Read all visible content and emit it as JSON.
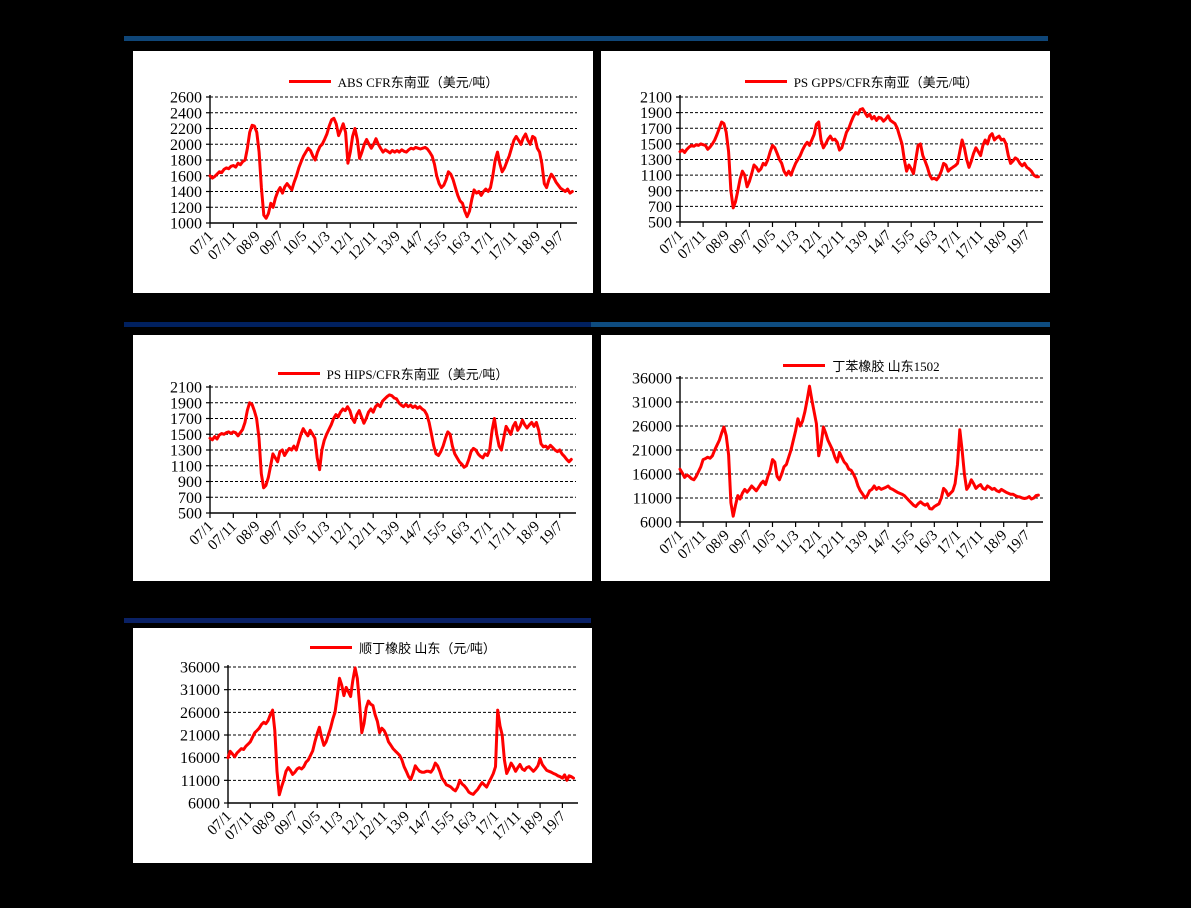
{
  "colors": {
    "background": "#000000",
    "panel": "#FFFFFF",
    "series_red": "#FF0000",
    "top_bar": "#0F4678",
    "mid_left_bar": "#00205F",
    "mid_right_bar": "#0E4C80",
    "bottom_bar": "#0A2165",
    "grid": "#000000"
  },
  "chart_data": [
    {
      "type": "line",
      "title": "ABS CFR东南亚（美元/吨）",
      "series_color": "#FF0000",
      "legend_position": "top-center",
      "grid": "dashed-horizontal",
      "x_start": "2007/01",
      "x_step_months": 1,
      "x_domain": [
        0,
        157
      ],
      "x_tick_positions": [
        0,
        10,
        20,
        30,
        40,
        50,
        60,
        70,
        80,
        90,
        100,
        110,
        120,
        130,
        140,
        150
      ],
      "x_tick_labels": [
        "07/1",
        "07/11",
        "08/9",
        "09/7",
        "10/5",
        "11/3",
        "12/1",
        "12/11",
        "13/9",
        "14/7",
        "15/5",
        "16/3",
        "17/1",
        "17/11",
        "18/9",
        "19/7"
      ],
      "ylim": [
        1000,
        2600
      ],
      "y_ticks": [
        1000,
        1200,
        1400,
        1600,
        1800,
        2000,
        2200,
        2400,
        2600
      ],
      "values": [
        1600,
        1570,
        1590,
        1620,
        1650,
        1640,
        1680,
        1700,
        1690,
        1720,
        1730,
        1710,
        1760,
        1740,
        1780,
        1800,
        1950,
        2150,
        2240,
        2230,
        2150,
        1900,
        1450,
        1100,
        1060,
        1120,
        1250,
        1200,
        1320,
        1400,
        1450,
        1380,
        1460,
        1500,
        1460,
        1420,
        1520,
        1600,
        1700,
        1780,
        1850,
        1900,
        1950,
        1920,
        1850,
        1800,
        1900,
        1970,
        2000,
        2060,
        2130,
        2230,
        2310,
        2330,
        2260,
        2110,
        2180,
        2260,
        2150,
        1760,
        1900,
        2100,
        2200,
        2060,
        1820,
        1900,
        2000,
        2060,
        2000,
        1950,
        2000,
        2070,
        2000,
        1950,
        1900,
        1930,
        1910,
        1890,
        1920,
        1900,
        1920,
        1900,
        1930,
        1910,
        1900,
        1930,
        1950,
        1940,
        1960,
        1950,
        1940,
        1950,
        1960,
        1940,
        1900,
        1850,
        1750,
        1600,
        1500,
        1450,
        1480,
        1550,
        1650,
        1620,
        1550,
        1450,
        1350,
        1280,
        1250,
        1150,
        1080,
        1150,
        1300,
        1420,
        1380,
        1400,
        1350,
        1400,
        1430,
        1400,
        1450,
        1600,
        1800,
        1900,
        1750,
        1650,
        1700,
        1780,
        1850,
        1950,
        2050,
        2100,
        2050,
        2000,
        2080,
        2130,
        2050,
        2000,
        2100,
        2080,
        1950,
        1900,
        1750,
        1500,
        1450,
        1550,
        1620,
        1580,
        1520,
        1480,
        1440,
        1420,
        1400,
        1430,
        1380,
        1400
      ]
    },
    {
      "type": "line",
      "title": "PS GPPS/CFR东南亚（美元/吨）",
      "series_color": "#FF0000",
      "legend_position": "top-center",
      "grid": "dashed-horizontal",
      "x_start": "2007/01",
      "x_step_months": 1,
      "x_domain": [
        0,
        157
      ],
      "x_tick_positions": [
        0,
        10,
        20,
        30,
        40,
        50,
        60,
        70,
        80,
        90,
        100,
        110,
        120,
        130,
        140,
        150
      ],
      "x_tick_labels": [
        "07/1",
        "07/11",
        "08/9",
        "09/7",
        "10/5",
        "11/3",
        "12/1",
        "12/11",
        "13/9",
        "14/7",
        "15/5",
        "16/3",
        "17/1",
        "17/11",
        "18/9",
        "19/7"
      ],
      "ylim": [
        500,
        2100
      ],
      "y_ticks": [
        500,
        700,
        900,
        1100,
        1300,
        1500,
        1700,
        1900,
        2100
      ],
      "values": [
        1400,
        1420,
        1390,
        1430,
        1460,
        1480,
        1470,
        1490,
        1480,
        1500,
        1490,
        1480,
        1430,
        1460,
        1500,
        1550,
        1620,
        1700,
        1780,
        1760,
        1650,
        1400,
        900,
        680,
        760,
        900,
        1050,
        1150,
        1100,
        950,
        1020,
        1120,
        1230,
        1200,
        1150,
        1180,
        1250,
        1230,
        1300,
        1400,
        1480,
        1450,
        1380,
        1300,
        1250,
        1150,
        1100,
        1150,
        1100,
        1180,
        1250,
        1300,
        1350,
        1420,
        1480,
        1520,
        1480,
        1550,
        1620,
        1750,
        1780,
        1550,
        1450,
        1500,
        1560,
        1600,
        1550,
        1560,
        1520,
        1420,
        1450,
        1550,
        1650,
        1700,
        1780,
        1850,
        1900,
        1880,
        1940,
        1950,
        1900,
        1850,
        1880,
        1820,
        1850,
        1800,
        1840,
        1830,
        1790,
        1820,
        1860,
        1800,
        1780,
        1760,
        1700,
        1600,
        1500,
        1300,
        1150,
        1230,
        1180,
        1120,
        1300,
        1480,
        1500,
        1350,
        1280,
        1200,
        1100,
        1050,
        1060,
        1040,
        1080,
        1150,
        1250,
        1230,
        1150,
        1180,
        1200,
        1220,
        1250,
        1400,
        1550,
        1450,
        1300,
        1200,
        1280,
        1380,
        1450,
        1400,
        1350,
        1480,
        1550,
        1500,
        1600,
        1630,
        1550,
        1580,
        1600,
        1550,
        1560,
        1500,
        1350,
        1250,
        1280,
        1320,
        1300,
        1250,
        1220,
        1250,
        1200,
        1180,
        1150,
        1100,
        1080,
        1080
      ]
    },
    {
      "type": "line",
      "title": "PS HIPS/CFR东南亚（美元/吨）",
      "series_color": "#FF0000",
      "legend_position": "top-center",
      "grid": "dashed-horizontal",
      "x_start": "2007/01",
      "x_step_months": 1,
      "x_domain": [
        0,
        157
      ],
      "x_tick_positions": [
        0,
        10,
        20,
        30,
        40,
        50,
        60,
        70,
        80,
        90,
        100,
        110,
        120,
        130,
        140,
        150
      ],
      "x_tick_labels": [
        "07/1",
        "07/11",
        "08/9",
        "09/7",
        "10/5",
        "11/3",
        "12/1",
        "12/11",
        "13/9",
        "14/7",
        "15/5",
        "16/3",
        "17/1",
        "17/11",
        "18/9",
        "19/7"
      ],
      "ylim": [
        500,
        2100
      ],
      "y_ticks": [
        500,
        700,
        900,
        1100,
        1300,
        1500,
        1700,
        1900,
        2100
      ],
      "values": [
        1450,
        1430,
        1470,
        1440,
        1490,
        1510,
        1500,
        1520,
        1530,
        1510,
        1530,
        1520,
        1480,
        1520,
        1560,
        1650,
        1800,
        1900,
        1880,
        1800,
        1700,
        1450,
        1000,
        820,
        850,
        950,
        1100,
        1250,
        1200,
        1150,
        1280,
        1300,
        1230,
        1280,
        1320,
        1300,
        1350,
        1300,
        1400,
        1500,
        1570,
        1520,
        1480,
        1550,
        1500,
        1450,
        1200,
        1050,
        1300,
        1420,
        1500,
        1560,
        1620,
        1700,
        1750,
        1720,
        1780,
        1820,
        1800,
        1850,
        1800,
        1700,
        1650,
        1750,
        1800,
        1720,
        1640,
        1700,
        1780,
        1820,
        1780,
        1850,
        1880,
        1850,
        1920,
        1950,
        1980,
        2000,
        1990,
        1960,
        1950,
        1900,
        1870,
        1850,
        1880,
        1850,
        1870,
        1840,
        1860,
        1830,
        1850,
        1820,
        1800,
        1750,
        1650,
        1500,
        1350,
        1250,
        1230,
        1280,
        1350,
        1450,
        1530,
        1500,
        1350,
        1250,
        1200,
        1150,
        1120,
        1080,
        1100,
        1180,
        1280,
        1320,
        1300,
        1250,
        1220,
        1200,
        1250,
        1230,
        1300,
        1550,
        1700,
        1500,
        1350,
        1300,
        1450,
        1600,
        1550,
        1500,
        1600,
        1650,
        1550,
        1600,
        1680,
        1620,
        1580,
        1620,
        1650,
        1600,
        1650,
        1550,
        1380,
        1340,
        1350,
        1320,
        1360,
        1330,
        1300,
        1280,
        1300,
        1250,
        1220,
        1180,
        1150,
        1180
      ]
    },
    {
      "type": "line",
      "title": "丁苯橡胶 山东1502",
      "series_color": "#FF0000",
      "legend_position": "top-center",
      "grid": "dashed-horizontal",
      "x_start": "2007/01",
      "x_step_months": 1,
      "x_domain": [
        0,
        157
      ],
      "x_tick_positions": [
        0,
        10,
        20,
        30,
        40,
        50,
        60,
        70,
        80,
        90,
        100,
        110,
        120,
        130,
        140,
        150
      ],
      "x_tick_labels": [
        "07/1",
        "07/11",
        "08/9",
        "09/7",
        "10/5",
        "11/3",
        "12/1",
        "12/11",
        "13/9",
        "14/7",
        "15/5",
        "16/3",
        "17/1",
        "17/11",
        "18/9",
        "19/7"
      ],
      "ylim": [
        6000,
        36000
      ],
      "y_ticks": [
        6000,
        11000,
        16000,
        21000,
        26000,
        31000,
        36000
      ],
      "values": [
        17000,
        16200,
        15300,
        15800,
        15500,
        15000,
        14800,
        15500,
        16500,
        17500,
        19000,
        19200,
        19500,
        19300,
        19800,
        21000,
        22000,
        23000,
        24500,
        25800,
        24000,
        20000,
        10000,
        7200,
        9500,
        11500,
        10800,
        12000,
        12800,
        12200,
        12800,
        13500,
        13000,
        12500,
        13200,
        14000,
        14500,
        13800,
        15500,
        16800,
        19000,
        18500,
        15500,
        14800,
        16000,
        17500,
        18000,
        19500,
        21000,
        23000,
        25000,
        27500,
        26000,
        27000,
        29000,
        31500,
        34300,
        31500,
        29000,
        26500,
        19800,
        22000,
        25800,
        24500,
        23000,
        22000,
        21000,
        19500,
        18500,
        20500,
        19500,
        18500,
        18000,
        17000,
        16800,
        16000,
        15000,
        13500,
        12500,
        11800,
        11000,
        11500,
        12500,
        12800,
        13500,
        12800,
        13200,
        12800,
        13000,
        13200,
        13500,
        13000,
        12800,
        12500,
        12200,
        12000,
        11800,
        11500,
        11000,
        10500,
        10000,
        9500,
        9200,
        9800,
        10200,
        9800,
        9500,
        9800,
        8800,
        8700,
        9200,
        9500,
        9800,
        11000,
        13000,
        12500,
        11500,
        12000,
        12500,
        14000,
        18000,
        25200,
        21000,
        16000,
        12800,
        13500,
        14800,
        14000,
        13000,
        13500,
        13800,
        13000,
        12800,
        13500,
        13200,
        12800,
        13000,
        12500,
        12300,
        12800,
        12500,
        12200,
        12000,
        11800,
        11800,
        11500,
        11300,
        11200,
        11000,
        10900,
        11000,
        11300,
        10800,
        11000,
        11500,
        11600
      ]
    },
    {
      "type": "line",
      "title": "顺丁橡胶 山东（元/吨）",
      "series_color": "#FF0000",
      "legend_position": "top-center",
      "grid": "dashed-horizontal",
      "x_start": "2007/01",
      "x_step_months": 1,
      "x_domain": [
        0,
        157
      ],
      "x_tick_positions": [
        0,
        10,
        20,
        30,
        40,
        50,
        60,
        70,
        80,
        90,
        100,
        110,
        120,
        130,
        140,
        150
      ],
      "x_tick_labels": [
        "07/1",
        "07/11",
        "08/9",
        "09/7",
        "10/5",
        "11/3",
        "12/1",
        "12/11",
        "13/9",
        "14/7",
        "15/5",
        "16/3",
        "17/1",
        "17/11",
        "18/9",
        "19/7"
      ],
      "ylim": [
        6000,
        36000
      ],
      "y_ticks": [
        6000,
        11000,
        16000,
        21000,
        26000,
        31000,
        36000
      ],
      "values": [
        16000,
        17400,
        16800,
        16200,
        17000,
        17500,
        18000,
        17800,
        18500,
        19000,
        19500,
        20500,
        21500,
        22000,
        22500,
        23300,
        23800,
        23500,
        24200,
        25500,
        26500,
        22000,
        13000,
        7800,
        9500,
        11000,
        13000,
        13800,
        13200,
        12300,
        12800,
        13500,
        13800,
        13500,
        14000,
        15000,
        15500,
        16500,
        17500,
        19500,
        21300,
        22700,
        20500,
        18700,
        19500,
        21000,
        22500,
        24500,
        26000,
        29500,
        33500,
        32000,
        29700,
        31500,
        30500,
        29500,
        33000,
        35800,
        33500,
        28000,
        21500,
        23500,
        27000,
        28500,
        27800,
        27500,
        25500,
        24000,
        21500,
        22500,
        22000,
        21000,
        19500,
        18800,
        18000,
        17500,
        17000,
        16500,
        15500,
        14000,
        13000,
        11800,
        11200,
        12500,
        14200,
        13500,
        13000,
        12800,
        12800,
        13000,
        13000,
        12800,
        13500,
        14800,
        14200,
        13000,
        11500,
        10800,
        10000,
        9800,
        9500,
        9000,
        8700,
        9500,
        11000,
        10200,
        9800,
        9200,
        8400,
        8100,
        7900,
        8500,
        9000,
        9800,
        10500,
        10000,
        9500,
        10500,
        11500,
        12500,
        14000,
        26500,
        23000,
        21000,
        15500,
        12500,
        13500,
        14800,
        14000,
        13000,
        13800,
        14500,
        13500,
        13200,
        13800,
        14000,
        13500,
        13000,
        13500,
        14200,
        15800,
        14500,
        13800,
        13200,
        13000,
        12800,
        12500,
        12300,
        12000,
        11800,
        11500,
        12200,
        11000,
        12000,
        11800,
        11500
      ]
    }
  ]
}
